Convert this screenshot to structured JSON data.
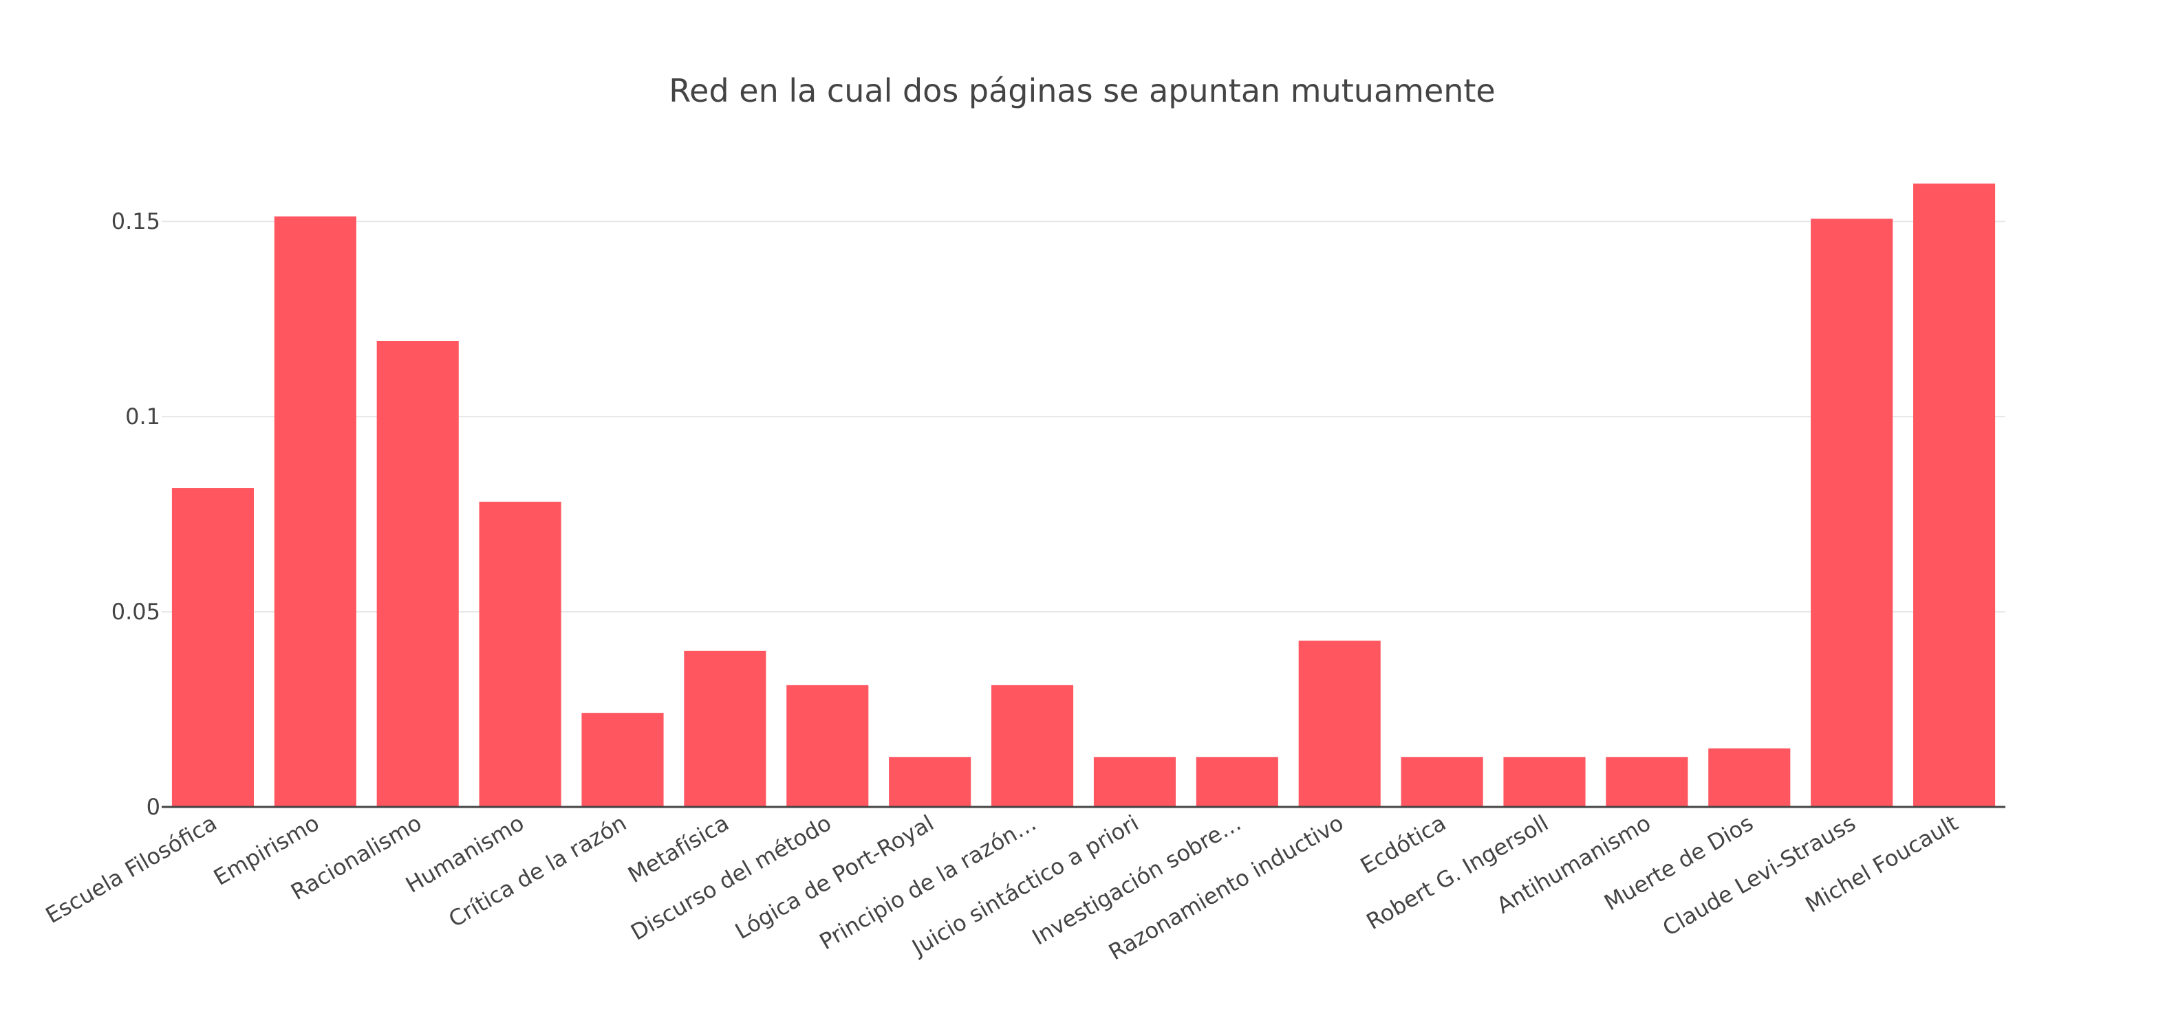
{
  "chart_data": {
    "type": "bar",
    "title": "Red en la cual dos páginas se apuntan mutuamente",
    "xlabel": "",
    "ylabel": "",
    "categories": [
      "Escuela Filosófica",
      "Empirismo",
      "Racionalismo",
      "Humanismo",
      "Crítica de la razón",
      "Metafísica",
      "Discurso del método",
      "Lógica de Port-Royal",
      "Principio de la razón…",
      "Juicio sintáctico a priori",
      "Investigación sobre…",
      "Razonamiento inductivo",
      "Ecdótica",
      "Robert G. Ingersoll",
      "Antihumanismo",
      "Muerte de Dios",
      "Claude Levi-Strauss",
      "Michel Foucault"
    ],
    "values": [
      0.0817,
      0.1513,
      0.1194,
      0.0782,
      0.0241,
      0.04,
      0.0312,
      0.0128,
      0.0312,
      0.0128,
      0.0128,
      0.0426,
      0.0128,
      0.0128,
      0.0128,
      0.015,
      0.1507,
      0.1597
    ],
    "ylim": [
      0,
      0.168
    ],
    "yticks": [
      0,
      0.05,
      0.1,
      0.15
    ],
    "ytick_labels": [
      "0",
      "0.05",
      "0.1",
      "0.15"
    ],
    "grid": true,
    "legend": "none",
    "bar_color": "#ff5660"
  }
}
